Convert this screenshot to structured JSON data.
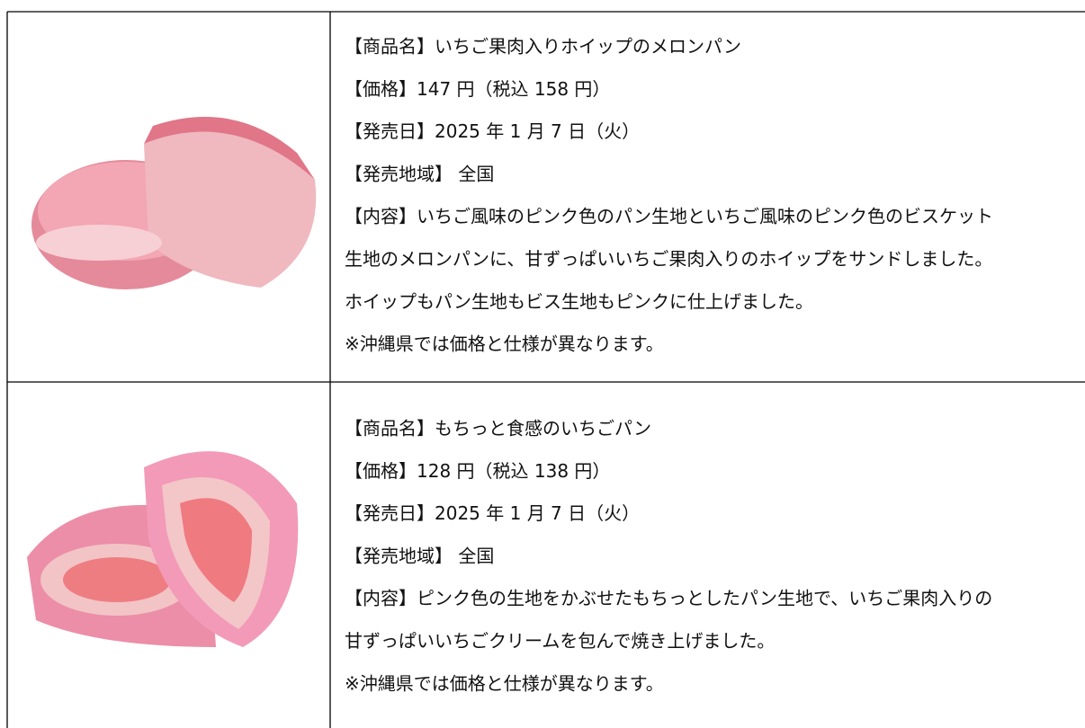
{
  "table": {
    "rows": [
      {
        "lines": [
          "【商品名】いちご果肉入りホイップのメロンパン",
          "【価格】147 円（税込 158 円）",
          "【発売日】2025 年 1 月 7 日（火）",
          "【発売地域】 全国",
          "【内容】いちご風味のピンク色のパン生地といちご風味のピンク色のビスケット",
          "生地のメロンパンに、甘ずっぱいいちご果肉入りのホイップをサンドしました。",
          "ホイップもパン生地もビス生地もピンクに仕上げました。",
          "※沖縄県では価格と仕様が異なります。"
        ]
      },
      {
        "lines": [
          "【商品名】もちっと食感のいちごパン",
          "【価格】128 円（税込 138 円）",
          "【発売日】2025 年 1 月 7 日（火）",
          "【発売地域】 全国",
          "【内容】ピンク色の生地をかぶせたもちっとしたパン生地で、いちご果肉入りの",
          "甘ずっぱいいちごクリームを包んで焼き上げました。",
          "※沖縄県では価格と仕様が異なります。"
        ]
      }
    ]
  }
}
